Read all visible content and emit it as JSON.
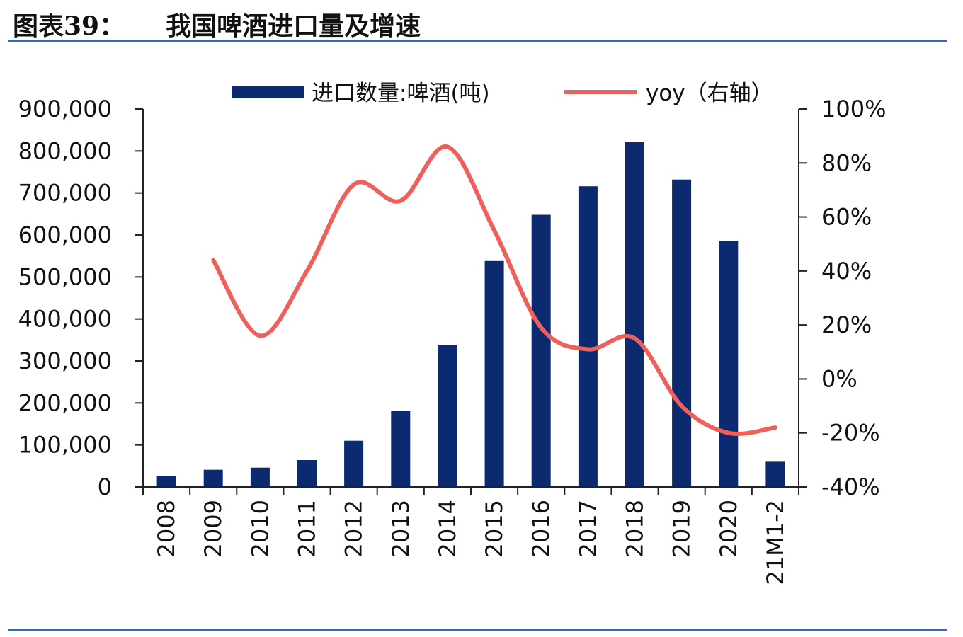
{
  "header": {
    "figure_label": "图表39：",
    "figure_title": "我国啤酒进口量及增速"
  },
  "colors": {
    "bar": "#0b2a70",
    "line": "#f0605a",
    "axis": "#222222",
    "rule": "#3f66a8"
  },
  "chart_data": {
    "type": "bar",
    "title": "我国啤酒进口量及增速",
    "categories": [
      "2008",
      "2009",
      "2010",
      "2011",
      "2012",
      "2013",
      "2014",
      "2015",
      "2016",
      "2017",
      "2018",
      "2019",
      "2020",
      "21M1-2"
    ],
    "series": [
      {
        "name": "进口数量:啤酒(吨)",
        "type": "bar",
        "axis": "left",
        "values": [
          27000,
          41000,
          46000,
          64000,
          110000,
          182000,
          338000,
          538000,
          648000,
          716000,
          821000,
          732000,
          586000,
          60000
        ]
      },
      {
        "name": "yoy（右轴）",
        "type": "line",
        "axis": "right",
        "values": [
          null,
          44,
          16,
          40,
          72,
          66,
          86,
          55,
          19,
          11,
          15,
          -10,
          -20,
          -18
        ]
      }
    ],
    "y_left": {
      "min": 0,
      "max": 900000,
      "step": 100000,
      "ticks": [
        "0",
        "100,000",
        "200,000",
        "300,000",
        "400,000",
        "500,000",
        "600,000",
        "700,000",
        "800,000",
        "900,000"
      ]
    },
    "y_right": {
      "min": -40,
      "max": 100,
      "step": 20,
      "ticks": [
        "-40%",
        "-20%",
        "0%",
        "20%",
        "40%",
        "60%",
        "80%",
        "100%"
      ]
    },
    "grid": false,
    "legend_position": "top"
  }
}
